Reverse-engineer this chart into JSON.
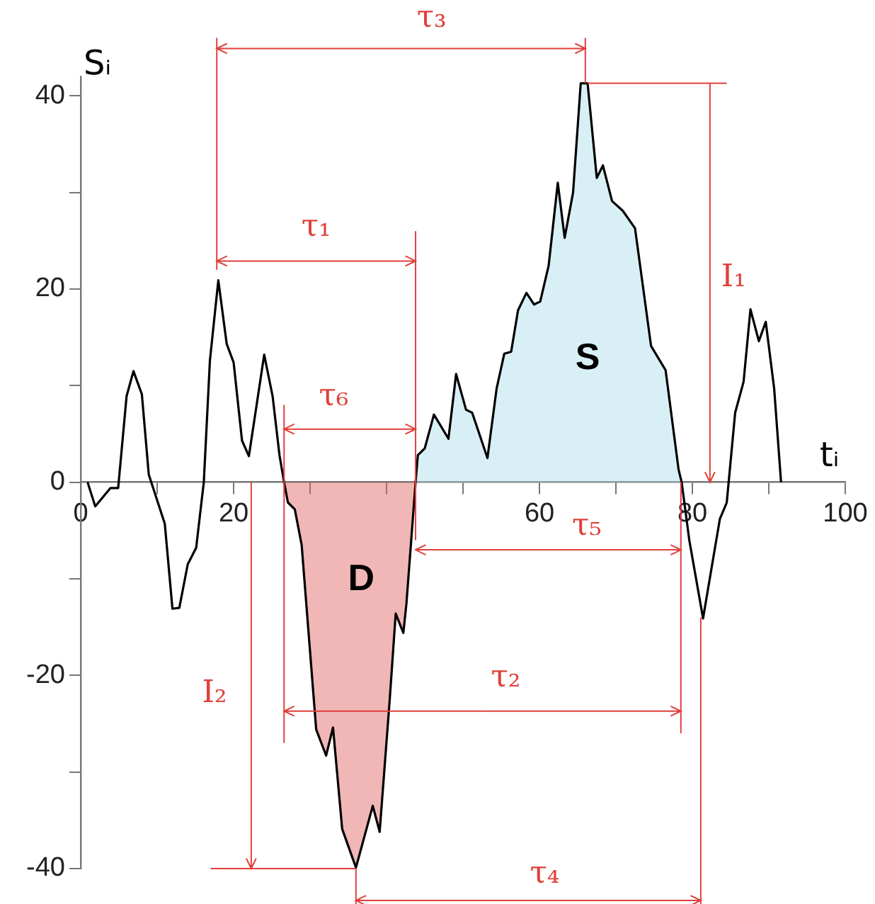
{
  "chart_data": {
    "type": "line",
    "xlabel": "tᵢ",
    "ylabel": "Sᵢ",
    "xlim": [
      0,
      100
    ],
    "ylim": [
      -40,
      42
    ],
    "xticks": [
      0,
      {
        "value": 10,
        "label": null
      },
      20,
      {
        "value": 30,
        "label": null
      },
      {
        "value": 40,
        "label": null
      },
      {
        "value": 50,
        "label": null
      },
      60,
      {
        "value": 70,
        "label": null
      },
      80,
      {
        "value": 90,
        "label": null
      },
      100
    ],
    "yticks": [
      -40,
      {
        "value": -30,
        "label": null
      },
      -20,
      {
        "value": -10,
        "label": null
      },
      0,
      {
        "value": 10,
        "label": null
      },
      20,
      {
        "value": 30,
        "label": null
      },
      40
    ],
    "grid": false,
    "legend": false,
    "marker": "none",
    "line_style": "solid",
    "series": [
      {
        "type": "area",
        "color": "#e06060",
        "x": [
          26.6,
          27.1,
          28.0,
          28.9,
          30.8,
          32.1,
          33.0,
          34.2,
          36.0,
          38.2,
          39.1,
          40.4,
          41.2,
          42.2,
          42.6,
          43.8
        ],
        "values": [
          0,
          -2.1,
          -2.8,
          -6.5,
          -25.6,
          -28.3,
          -25.4,
          -35.9,
          -39.9,
          -33.5,
          -36.2,
          -22.7,
          -13.6,
          -15.6,
          -12.6,
          0
        ]
      },
      {
        "type": "area",
        "color": "#a8dcea",
        "x": [
          43.8,
          44.1,
          45.0,
          46.2,
          48.1,
          49.1,
          50.4,
          51.2,
          53.2,
          54.4,
          55.4,
          56.3,
          57.2,
          58.3,
          59.3,
          60.1,
          61.2,
          62.4,
          63.3,
          64.4,
          65.4,
          66.3,
          67.5,
          68.3,
          69.5,
          70.9,
          72.5,
          74.6,
          76.5,
          78.2,
          78.6
        ],
        "values": [
          0,
          2.8,
          3.5,
          7.0,
          4.5,
          11.2,
          7.5,
          7.2,
          2.5,
          9.7,
          13.3,
          13.5,
          17.8,
          19.6,
          18.4,
          18.7,
          22.4,
          31.0,
          25.3,
          30.0,
          41.3,
          41.3,
          31.5,
          32.8,
          29.1,
          28.1,
          26.3,
          14.1,
          11.6,
          1.3,
          0
        ]
      },
      {
        "color": "#000000",
        "x": [
          0.9,
          1.9,
          3.9,
          4.9,
          6.0,
          6.9,
          8.0,
          8.9,
          11.0,
          12.0,
          12.9,
          14.0,
          15.1,
          16.1,
          16.9,
          18.0,
          19.1,
          20.0,
          21.1,
          22.0,
          24.0,
          25.1,
          26.0,
          26.6,
          27.1,
          28.0,
          28.9,
          30.8,
          32.1,
          33.0,
          34.2,
          36.0,
          38.2,
          39.1,
          40.4,
          41.2,
          42.2,
          42.6,
          43.8,
          44.1,
          45.0,
          46.2,
          48.1,
          49.1,
          50.4,
          51.2,
          53.2,
          54.4,
          55.4,
          56.3,
          57.2,
          58.3,
          59.3,
          60.1,
          61.2,
          62.4,
          63.3,
          64.4,
          65.4,
          66.3,
          67.5,
          68.3,
          69.5,
          70.9,
          72.5,
          74.6,
          76.5,
          78.2,
          78.6,
          79.6,
          81.4,
          82.7,
          83.6,
          84.5,
          85.6,
          86.7,
          87.6,
          88.7,
          89.6,
          90.7,
          91.6
        ],
        "values": [
          0,
          -2.5,
          -0.6,
          -0.6,
          8.9,
          11.5,
          9.1,
          0.8,
          -4.3,
          -13.1,
          -13.0,
          -8.5,
          -6.8,
          0,
          12.6,
          20.9,
          14.3,
          12.4,
          4.3,
          2.7,
          13.2,
          8.9,
          2.8,
          0,
          -2.1,
          -2.8,
          -6.5,
          -25.6,
          -28.3,
          -25.4,
          -35.9,
          -39.9,
          -33.5,
          -36.2,
          -22.7,
          -13.6,
          -15.6,
          -12.6,
          0,
          2.8,
          3.5,
          7.0,
          4.5,
          11.2,
          7.5,
          7.2,
          2.5,
          9.7,
          13.3,
          13.5,
          17.8,
          19.6,
          18.4,
          18.7,
          22.4,
          31.0,
          25.3,
          30.0,
          41.3,
          41.3,
          31.5,
          32.8,
          29.1,
          28.1,
          26.3,
          14.1,
          11.6,
          1.3,
          0,
          -6.0,
          -14.1,
          -8.0,
          -3.8,
          -2.1,
          7.2,
          10.4,
          17.9,
          14.6,
          16.6,
          9.7,
          0
        ]
      }
    ],
    "annotations": [
      "τ₁",
      "τ₃",
      "τ₆",
      "τ₅",
      "τ₂",
      "τ₄",
      "I₁",
      "I₂",
      "D",
      "S"
    ]
  }
}
